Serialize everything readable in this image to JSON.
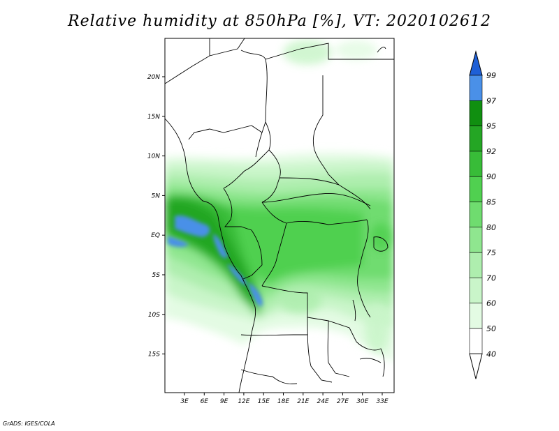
{
  "title": "Relative humidity at 850hPa [%], VT: 2020102612",
  "credit": "GrADS: IGES/COLA",
  "map": {
    "lat_labels": [
      "20N",
      "15N",
      "10N",
      "5N",
      "EQ",
      "5S",
      "10S",
      "15S"
    ],
    "lon_labels": [
      "3E",
      "6E",
      "9E",
      "12E",
      "15E",
      "18E",
      "21E",
      "24E",
      "27E",
      "30E",
      "33E"
    ]
  },
  "colorbar": {
    "levels": [
      "99",
      "97",
      "95",
      "92",
      "90",
      "85",
      "80",
      "75",
      "70",
      "60",
      "50",
      "40"
    ],
    "colors": [
      "#1e5fd6",
      "#4a90e8",
      "#108f10",
      "#24a624",
      "#38bc38",
      "#50d050",
      "#6fdc6f",
      "#8fe68f",
      "#aeeeae",
      "#c9f5c9",
      "#e3fbe3",
      "#ffffff"
    ]
  }
}
